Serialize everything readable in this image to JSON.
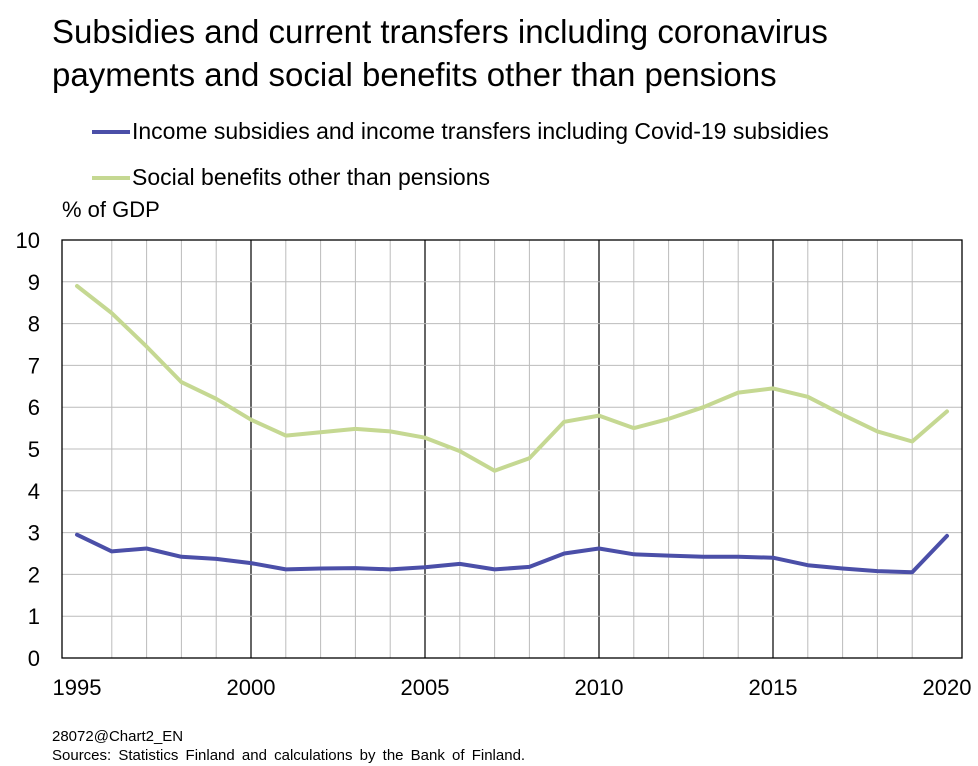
{
  "chart_data": {
    "type": "line",
    "title": "Subsidies and current transfers including coronavirus payments and social benefits other than pensions",
    "ylabel": "% of GDP",
    "xlim": [
      1995,
      2020
    ],
    "ylim": [
      0,
      10
    ],
    "x_ticks": [
      "1995",
      "2000",
      "2005",
      "2010",
      "2015",
      "2020"
    ],
    "y_ticks": [
      "0",
      "1",
      "2",
      "3",
      "4",
      "5",
      "6",
      "7",
      "8",
      "9",
      "10"
    ],
    "grid": true,
    "legend_position": "top",
    "x": [
      1995,
      1996,
      1997,
      1998,
      1999,
      2000,
      2001,
      2002,
      2003,
      2004,
      2005,
      2006,
      2007,
      2008,
      2009,
      2010,
      2011,
      2012,
      2013,
      2014,
      2015,
      2016,
      2017,
      2018,
      2019,
      2020
    ],
    "series": [
      {
        "name": "Income subsidies and income transfers including Covid-19 subsidies",
        "color": "#4b4fa8",
        "values": [
          2.95,
          2.55,
          2.62,
          2.42,
          2.37,
          2.27,
          2.12,
          2.14,
          2.15,
          2.12,
          2.17,
          2.25,
          2.12,
          2.18,
          2.5,
          2.62,
          2.48,
          2.45,
          2.42,
          2.42,
          2.4,
          2.22,
          2.14,
          2.08,
          2.05,
          2.92
        ]
      },
      {
        "name": "Social benefits other than pensions",
        "color": "#c5d892",
        "values": [
          8.9,
          8.25,
          7.45,
          6.6,
          6.2,
          5.7,
          5.32,
          5.4,
          5.48,
          5.42,
          5.27,
          4.95,
          4.48,
          4.78,
          5.65,
          5.8,
          5.5,
          5.72,
          6.0,
          6.35,
          6.45,
          6.25,
          5.82,
          5.42,
          5.18,
          5.9
        ]
      }
    ]
  },
  "footer": {
    "code": "28072@Chart2_EN",
    "sources": "Sources: Statistics Finland and calculations by the Bank of Finland."
  }
}
